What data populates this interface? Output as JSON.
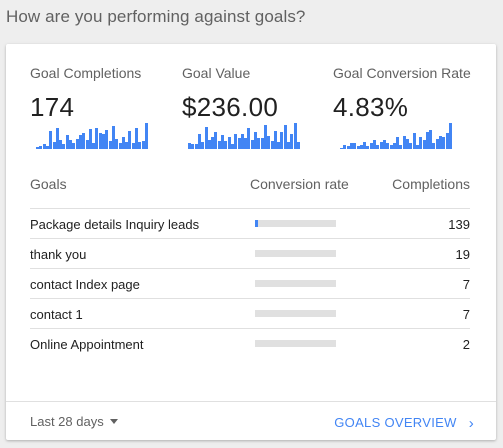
{
  "header": {
    "title": "How are you performing against goals?"
  },
  "metrics": [
    {
      "label": "Goal Completions",
      "value": "174",
      "sparkline": [
        2,
        3,
        4,
        3,
        16,
        6,
        19,
        8,
        4,
        12,
        8,
        5,
        9,
        12,
        14,
        8,
        18,
        5,
        19,
        14,
        13,
        17,
        7,
        20,
        9,
        5,
        11,
        6,
        16,
        5,
        19,
        6,
        7,
        23
      ]
    },
    {
      "label": "Goal Value",
      "value": "$236.00",
      "sparkline": [
        5,
        4,
        4,
        13,
        6,
        19,
        8,
        10,
        14,
        7,
        12,
        7,
        10,
        4,
        13,
        9,
        13,
        9,
        18,
        8,
        14,
        9,
        9,
        20,
        11,
        7,
        15,
        6,
        14,
        20,
        6,
        13,
        22,
        6
      ]
    },
    {
      "label": "Goal Conversion Rate",
      "value": "4.83%",
      "sparkline": [
        1,
        3,
        2,
        4,
        4,
        2,
        3,
        5,
        2,
        4,
        6,
        3,
        5,
        6,
        4,
        3,
        4,
        8,
        3,
        9,
        7,
        4,
        11,
        3,
        8,
        6,
        12,
        13,
        4,
        7,
        9,
        8,
        11,
        18
      ]
    }
  ],
  "table": {
    "columns": {
      "goals": "Goals",
      "rate": "Conversion rate",
      "completions": "Completions"
    },
    "rows": [
      {
        "name": "Package details Inquiry leads",
        "rate": 0.04,
        "completions": "139"
      },
      {
        "name": "thank you",
        "rate": 0.0,
        "completions": "19"
      },
      {
        "name": "contact Index page",
        "rate": 0.0,
        "completions": "7"
      },
      {
        "name": "contact 1",
        "rate": 0.0,
        "completions": "7"
      },
      {
        "name": "Online Appointment",
        "rate": 0.0,
        "completions": "2"
      }
    ]
  },
  "footer": {
    "range_label": "Last 28 days",
    "overview_label": "GOALS OVERVIEW"
  },
  "colors": {
    "accent": "#4285f4",
    "track": "#e0e0e0"
  },
  "icons": {
    "range": "caret-down-icon",
    "overview": "chevron-right-icon"
  }
}
